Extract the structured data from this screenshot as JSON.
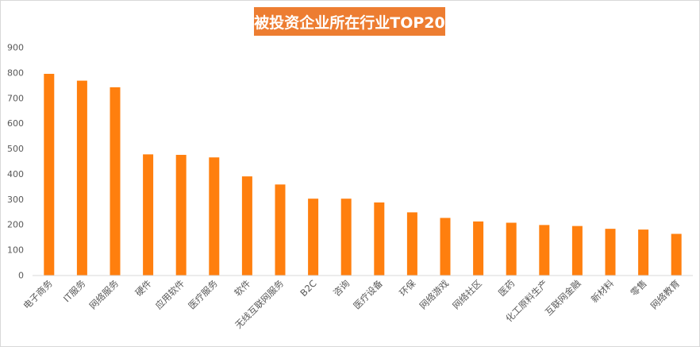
{
  "chart_data": {
    "type": "bar",
    "title": "被投资企业所在行业TOP20",
    "xlabel": "",
    "ylabel": "",
    "ylim": [
      0,
      900
    ],
    "yticks": [
      0,
      100,
      200,
      300,
      400,
      500,
      600,
      700,
      800,
      900
    ],
    "grid": false,
    "legend": "none",
    "bar_color": "#ff7f0e",
    "title_background": "#ed7d31",
    "categories": [
      "电子商务",
      "IT服务",
      "网络服务",
      "硬件",
      "应用软件",
      "医疗服务",
      "软件",
      "无线互联网服务",
      "B2C",
      "咨询",
      "医疗设备",
      "环保",
      "网络游戏",
      "网络社区",
      "医药",
      "化工原料生产",
      "互联网金融",
      "新材料",
      "零售",
      "网络教育"
    ],
    "values": [
      795,
      768,
      742,
      477,
      475,
      465,
      390,
      358,
      302,
      302,
      287,
      248,
      226,
      212,
      207,
      198,
      194,
      183,
      180,
      163
    ]
  }
}
